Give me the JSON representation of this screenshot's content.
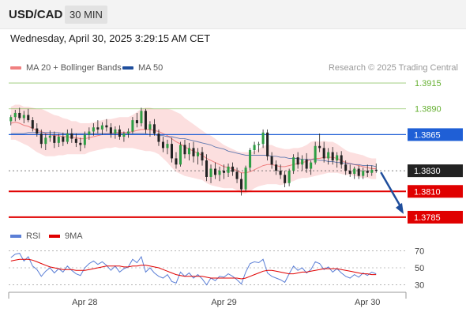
{
  "header": {
    "symbol": "USD/CAD",
    "timeframe": "30 MIN",
    "datetime": "Wednesday, April 30, 2025 3:29:15 AM CET"
  },
  "legend": {
    "bb_label": "MA 20 + Bollinger Bands",
    "bb_color": "#f08080",
    "ma50_label": "MA 50",
    "ma50_color": "#1f4e9c",
    "credit": "Research © 2025 Trading Central"
  },
  "rsi_legend": {
    "rsi_label": "RSI",
    "rsi_color": "#5b7fd6",
    "ma9_label": "9MA",
    "ma9_color": "#e00000"
  },
  "chart_data": [
    {
      "type": "candlestick",
      "x_ticks": [
        "Apr 28",
        "Apr 29",
        "Apr 30"
      ],
      "ylim": [
        1.3775,
        1.3925
      ],
      "levels": [
        {
          "value": 1.3915,
          "label": "1.3915",
          "kind": "target",
          "color": "#66b032"
        },
        {
          "value": 1.389,
          "label": "1.3890",
          "kind": "target",
          "color": "#66b032"
        },
        {
          "value": 1.3865,
          "label": "1.3865",
          "kind": "pivot",
          "color": "#1f5fd6"
        },
        {
          "value": 1.383,
          "label": "1.3830",
          "kind": "last",
          "color": "#222222"
        },
        {
          "value": 1.381,
          "label": "1.3810",
          "kind": "support",
          "color": "#e00000"
        },
        {
          "value": 1.3785,
          "label": "1.3785",
          "kind": "support",
          "color": "#e00000"
        }
      ],
      "candles": [
        [
          1.3878,
          1.3884,
          1.3874,
          1.3882
        ],
        [
          1.3882,
          1.3889,
          1.3878,
          1.3886
        ],
        [
          1.3886,
          1.3891,
          1.3879,
          1.3881
        ],
        [
          1.3881,
          1.3888,
          1.3876,
          1.3884
        ],
        [
          1.3884,
          1.389,
          1.3877,
          1.3879
        ],
        [
          1.3879,
          1.3882,
          1.3868,
          1.3871
        ],
        [
          1.3871,
          1.3876,
          1.3863,
          1.3866
        ],
        [
          1.3866,
          1.387,
          1.3852,
          1.3856
        ],
        [
          1.3856,
          1.3866,
          1.385,
          1.3862
        ],
        [
          1.3862,
          1.3869,
          1.3858,
          1.3864
        ],
        [
          1.3864,
          1.3868,
          1.3852,
          1.3857
        ],
        [
          1.3857,
          1.3866,
          1.3853,
          1.3863
        ],
        [
          1.3863,
          1.3867,
          1.3854,
          1.3858
        ],
        [
          1.3858,
          1.387,
          1.3856,
          1.3866
        ],
        [
          1.3866,
          1.3871,
          1.3857,
          1.3861
        ],
        [
          1.3861,
          1.3866,
          1.3853,
          1.3857
        ],
        [
          1.3857,
          1.3862,
          1.3849,
          1.3855
        ],
        [
          1.3855,
          1.3868,
          1.3852,
          1.3865
        ],
        [
          1.3865,
          1.3872,
          1.386,
          1.3868
        ],
        [
          1.3868,
          1.3876,
          1.3864,
          1.3872
        ],
        [
          1.3872,
          1.3879,
          1.3866,
          1.387
        ],
        [
          1.387,
          1.3877,
          1.3865,
          1.3874
        ],
        [
          1.3874,
          1.388,
          1.3868,
          1.3872
        ],
        [
          1.3872,
          1.3876,
          1.3862,
          1.3866
        ],
        [
          1.3866,
          1.3873,
          1.3861,
          1.387
        ],
        [
          1.387,
          1.3874,
          1.386,
          1.3863
        ],
        [
          1.3863,
          1.3868,
          1.3858,
          1.3866
        ],
        [
          1.3866,
          1.3871,
          1.3862,
          1.3868
        ],
        [
          1.3868,
          1.3882,
          1.3866,
          1.3879
        ],
        [
          1.3879,
          1.3886,
          1.3872,
          1.3876
        ],
        [
          1.3876,
          1.3891,
          1.3873,
          1.3888
        ],
        [
          1.3888,
          1.389,
          1.3866,
          1.387
        ],
        [
          1.387,
          1.3878,
          1.3863,
          1.3875
        ],
        [
          1.3875,
          1.388,
          1.3864,
          1.3866
        ],
        [
          1.3866,
          1.387,
          1.3854,
          1.3858
        ],
        [
          1.3858,
          1.3863,
          1.3848,
          1.3852
        ],
        [
          1.3852,
          1.386,
          1.3846,
          1.3856
        ],
        [
          1.3856,
          1.3862,
          1.3838,
          1.3842
        ],
        [
          1.3842,
          1.3848,
          1.3832,
          1.3836
        ],
        [
          1.3836,
          1.3858,
          1.3834,
          1.3855
        ],
        [
          1.3855,
          1.386,
          1.3842,
          1.3846
        ],
        [
          1.3846,
          1.3857,
          1.384,
          1.3852
        ],
        [
          1.3852,
          1.3858,
          1.3838,
          1.3844
        ],
        [
          1.3844,
          1.3852,
          1.3836,
          1.3848
        ],
        [
          1.3848,
          1.3853,
          1.3835,
          1.384
        ],
        [
          1.384,
          1.3846,
          1.382,
          1.3824
        ],
        [
          1.3824,
          1.3836,
          1.3818,
          1.3832
        ],
        [
          1.3832,
          1.3838,
          1.3822,
          1.3826
        ],
        [
          1.3826,
          1.3834,
          1.382,
          1.383
        ],
        [
          1.383,
          1.3836,
          1.3822,
          1.3828
        ],
        [
          1.3828,
          1.3837,
          1.3824,
          1.3834
        ],
        [
          1.3834,
          1.3838,
          1.3825,
          1.3829
        ],
        [
          1.3829,
          1.3833,
          1.3818,
          1.3822
        ],
        [
          1.3822,
          1.3828,
          1.3806,
          1.3812
        ],
        [
          1.3812,
          1.3835,
          1.381,
          1.3833
        ],
        [
          1.3833,
          1.3852,
          1.383,
          1.385
        ],
        [
          1.385,
          1.3858,
          1.3846,
          1.3855
        ],
        [
          1.3855,
          1.3858,
          1.3848,
          1.3856
        ],
        [
          1.3856,
          1.387,
          1.3852,
          1.3867
        ],
        [
          1.3867,
          1.387,
          1.384,
          1.3844
        ],
        [
          1.3844,
          1.3848,
          1.3832,
          1.3836
        ],
        [
          1.3836,
          1.384,
          1.3826,
          1.383
        ],
        [
          1.383,
          1.3836,
          1.3822,
          1.3826
        ],
        [
          1.3826,
          1.383,
          1.3814,
          1.3818
        ],
        [
          1.3818,
          1.3832,
          1.3815,
          1.383
        ],
        [
          1.383,
          1.3846,
          1.3827,
          1.3843
        ],
        [
          1.3843,
          1.3848,
          1.3832,
          1.3836
        ],
        [
          1.3836,
          1.3845,
          1.383,
          1.3841
        ],
        [
          1.3841,
          1.3847,
          1.3828,
          1.3832
        ],
        [
          1.3832,
          1.384,
          1.3826,
          1.3838
        ],
        [
          1.3838,
          1.3858,
          1.3836,
          1.3854
        ],
        [
          1.3854,
          1.3866,
          1.3848,
          1.3852
        ],
        [
          1.3852,
          1.3858,
          1.3838,
          1.3842
        ],
        [
          1.3842,
          1.3852,
          1.3836,
          1.3848
        ],
        [
          1.3848,
          1.3853,
          1.3836,
          1.384
        ],
        [
          1.384,
          1.3848,
          1.3833,
          1.3845
        ],
        [
          1.3845,
          1.3849,
          1.3832,
          1.3836
        ],
        [
          1.3836,
          1.384,
          1.3826,
          1.383
        ],
        [
          1.383,
          1.3836,
          1.3824,
          1.3827
        ],
        [
          1.3827,
          1.3834,
          1.3822,
          1.3832
        ],
        [
          1.3832,
          1.3835,
          1.3822,
          1.3825
        ],
        [
          1.3825,
          1.3833,
          1.3822,
          1.383
        ],
        [
          1.383,
          1.3836,
          1.3824,
          1.3828
        ],
        [
          1.3828,
          1.3835,
          1.3825,
          1.3831
        ],
        [
          1.3831,
          1.3837,
          1.3828,
          1.383
        ]
      ],
      "bollinger": {
        "mid": [
          1.3876,
          1.3877,
          1.3876,
          1.3874,
          1.3873,
          1.3871,
          1.3869,
          1.3868,
          1.3866,
          1.3865,
          1.3864,
          1.3864,
          1.3863,
          1.3863,
          1.3862,
          1.3862,
          1.3861,
          1.3861,
          1.3862,
          1.3863,
          1.3864,
          1.3865,
          1.3866,
          1.3866,
          1.3867,
          1.3867,
          1.3867,
          1.3867,
          1.3868,
          1.3869,
          1.387,
          1.387,
          1.387,
          1.3869,
          1.3868,
          1.3866,
          1.3864,
          1.3861,
          1.3858,
          1.3856,
          1.3853,
          1.3851,
          1.3849,
          1.3847,
          1.3845,
          1.3842,
          1.384,
          1.3838,
          1.3836,
          1.3834,
          1.3833,
          1.3832,
          1.383,
          1.3828,
          1.3828,
          1.3829,
          1.3831,
          1.3833,
          1.3835,
          1.3836,
          1.3836,
          1.3835,
          1.3834,
          1.3834,
          1.3835,
          1.3836,
          1.3837,
          1.3838,
          1.3839,
          1.3841,
          1.3842,
          1.3842,
          1.3843,
          1.3843,
          1.3843,
          1.3842,
          1.384,
          1.3838,
          1.3837,
          1.3836,
          1.3835,
          1.3834,
          1.3833,
          1.3832,
          1.3832
        ],
        "width": [
          0.0016,
          0.0017,
          0.0018,
          0.0018,
          0.0019,
          0.002,
          0.0021,
          0.0022,
          0.0022,
          0.0021,
          0.002,
          0.0019,
          0.0018,
          0.0017,
          0.0016,
          0.0016,
          0.0015,
          0.0015,
          0.0014,
          0.0014,
          0.0014,
          0.0014,
          0.0014,
          0.0014,
          0.0014,
          0.0015,
          0.0015,
          0.0015,
          0.0016,
          0.0018,
          0.002,
          0.0021,
          0.0021,
          0.0021,
          0.0022,
          0.0024,
          0.0026,
          0.0028,
          0.0029,
          0.0029,
          0.0028,
          0.0027,
          0.0026,
          0.0025,
          0.0024,
          0.0024,
          0.0024,
          0.0023,
          0.0022,
          0.0021,
          0.002,
          0.0019,
          0.0019,
          0.002,
          0.002,
          0.0019,
          0.0018,
          0.0018,
          0.0019,
          0.0019,
          0.0019,
          0.0018,
          0.0018,
          0.0017,
          0.0016,
          0.0016,
          0.0015,
          0.0015,
          0.0016,
          0.0017,
          0.0017,
          0.0016,
          0.0016,
          0.0015,
          0.0015,
          0.0014,
          0.0013,
          0.0012,
          0.0011,
          0.0011,
          0.0011,
          0.0011,
          0.001,
          0.001,
          0.001
        ]
      },
      "ma50": [
        1.3866,
        1.3866,
        1.3866,
        1.3866,
        1.3867,
        1.3867,
        1.3867,
        1.3867,
        1.3867,
        1.3867,
        1.3867,
        1.3867,
        1.3866,
        1.3866,
        1.3866,
        1.3866,
        1.3866,
        1.3866,
        1.3866,
        1.3866,
        1.3866,
        1.3866,
        1.3866,
        1.3866,
        1.3866,
        1.3866,
        1.3866,
        1.3866,
        1.3866,
        1.3866,
        1.3866,
        1.3866,
        1.3865,
        1.3865,
        1.3864,
        1.3864,
        1.3863,
        1.3863,
        1.3862,
        1.3861,
        1.3861,
        1.386,
        1.3859,
        1.3858,
        1.3857,
        1.3856,
        1.3855,
        1.3853,
        1.3852,
        1.3851,
        1.3849,
        1.3848,
        1.3847,
        1.3846,
        1.3845,
        1.3845,
        1.3845,
        1.3845,
        1.3845,
        1.3845,
        1.3844,
        1.3844,
        1.3843,
        1.3843,
        1.3842,
        1.3842,
        1.3842,
        1.3841,
        1.3841,
        1.3841,
        1.3841,
        1.384,
        1.384,
        1.3839,
        1.3839,
        1.3838,
        1.3838,
        1.3837,
        1.3837,
        1.3836,
        1.3836,
        1.3835,
        1.3835,
        1.3835,
        1.3834
      ],
      "arrow": {
        "from": 1.383,
        "to": 1.3785
      }
    },
    {
      "type": "line",
      "ylim": [
        25,
        75
      ],
      "y_ticks": [
        70,
        50,
        30
      ],
      "series": [
        {
          "name": "RSI",
          "color": "#5b7fd6",
          "values": [
            62,
            66,
            67,
            58,
            63,
            52,
            48,
            40,
            46,
            50,
            44,
            49,
            45,
            52,
            47,
            43,
            41,
            50,
            55,
            58,
            54,
            57,
            53,
            47,
            52,
            45,
            49,
            51,
            60,
            56,
            63,
            45,
            50,
            44,
            40,
            38,
            42,
            34,
            32,
            45,
            40,
            44,
            38,
            42,
            37,
            30,
            38,
            35,
            40,
            39,
            43,
            40,
            36,
            31,
            45,
            55,
            57,
            56,
            60,
            44,
            40,
            38,
            36,
            33,
            43,
            52,
            47,
            50,
            44,
            48,
            57,
            55,
            48,
            51,
            45,
            49,
            44,
            40,
            38,
            42,
            39,
            44,
            41,
            45,
            43
          ]
        },
        {
          "name": "9MA",
          "color": "#e00000",
          "values": [
            58,
            59,
            60,
            60,
            60,
            59,
            57,
            55,
            53,
            51,
            50,
            49,
            48,
            48,
            48,
            47,
            47,
            47,
            48,
            49,
            50,
            51,
            52,
            52,
            52,
            52,
            51,
            51,
            52,
            52,
            53,
            53,
            52,
            51,
            50,
            48,
            46,
            44,
            42,
            41,
            40,
            40,
            40,
            40,
            40,
            39,
            38,
            38,
            38,
            38,
            38,
            38,
            38,
            37,
            38,
            40,
            42,
            44,
            46,
            47,
            47,
            46,
            45,
            44,
            43,
            43,
            44,
            45,
            45,
            46,
            47,
            48,
            49,
            49,
            49,
            49,
            48,
            47,
            46,
            45,
            44,
            43,
            43,
            42,
            42
          ]
        }
      ]
    }
  ]
}
